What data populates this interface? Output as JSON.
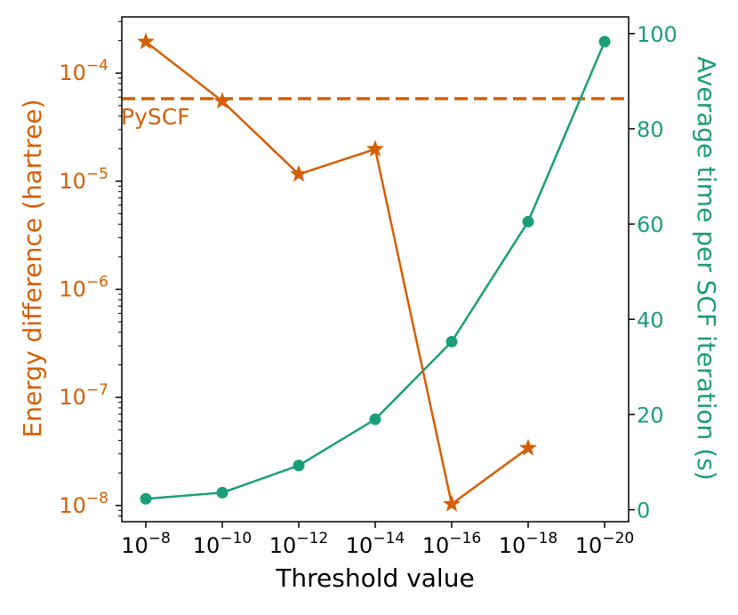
{
  "chart_data": {
    "type": "line",
    "xlabel": "Threshold value",
    "x_ticks": [
      {
        "base": "10",
        "exp": "−8"
      },
      {
        "base": "10",
        "exp": "−10"
      },
      {
        "base": "10",
        "exp": "−12"
      },
      {
        "base": "10",
        "exp": "−14"
      },
      {
        "base": "10",
        "exp": "−16"
      },
      {
        "base": "10",
        "exp": "−18"
      },
      {
        "base": "10",
        "exp": "−20"
      }
    ],
    "left_axis": {
      "label": "Energy difference (hartree)",
      "scale": "log",
      "color": "#d55e00",
      "log_min": -8.15,
      "log_max": -3.48,
      "ticks": [
        {
          "value": -8,
          "base": "10",
          "exp": "−8"
        },
        {
          "value": -7,
          "base": "10",
          "exp": "−7"
        },
        {
          "value": -6,
          "base": "10",
          "exp": "−6"
        },
        {
          "value": -5,
          "base": "10",
          "exp": "−5"
        },
        {
          "value": -4,
          "base": "10",
          "exp": "−4"
        }
      ]
    },
    "right_axis": {
      "label": "Average time per SCF iteration (s)",
      "scale": "linear",
      "color": "#1b9e77",
      "ylim": [
        -2.5,
        103.5
      ],
      "ticks": [
        "0",
        "20",
        "40",
        "60",
        "80",
        "100"
      ]
    },
    "series": [
      {
        "name": "Energy difference",
        "axis": "left",
        "marker": "star",
        "color": "#d55e00",
        "values": [
          0.000195,
          5.5e-05,
          1.16e-05,
          1.98e-05,
          1.03e-08,
          3.4e-08
        ],
        "x_index": [
          0,
          1,
          2,
          3,
          4,
          5
        ]
      },
      {
        "name": "Average time per SCF iteration",
        "axis": "right",
        "marker": "circle",
        "color": "#1b9e77",
        "values": [
          2.3,
          3.6,
          9.3,
          19.0,
          35.3,
          60.5,
          98.3
        ],
        "x_index": [
          0,
          1,
          2,
          3,
          4,
          5,
          6
        ]
      }
    ],
    "reference_line": {
      "label": "PySCF",
      "value": 5.8e-05,
      "axis": "left",
      "style": "dashed",
      "color": "#d55e00"
    }
  }
}
